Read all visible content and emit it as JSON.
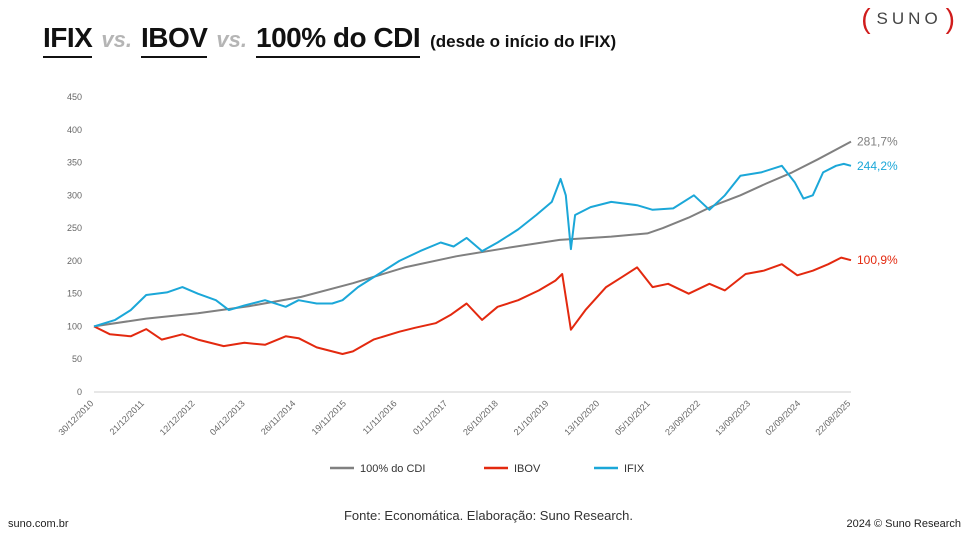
{
  "header": {
    "title_parts": {
      "ifix": "IFIX",
      "vs1": "vs.",
      "ibov": "IBOV",
      "vs2": "vs.",
      "cdi": "100% do CDI"
    },
    "subtitle": "(desde o início do IFIX)"
  },
  "brand": {
    "open": "(",
    "name": "SUNO",
    "close": ")",
    "accent": "#d01c1c"
  },
  "footer": {
    "source": "Fonte: Economática. Elaboração: Suno Research.",
    "site": "suno.com.br",
    "copyright": "2024 © Suno Research"
  },
  "chart_data": {
    "type": "line",
    "title": "IFIX vs. IBOV vs. 100% do CDI (desde o início do IFIX)",
    "xlabel": "",
    "ylabel": "",
    "ylim": [
      0,
      450
    ],
    "yticks": [
      0,
      50,
      100,
      150,
      200,
      250,
      300,
      350,
      400,
      450
    ],
    "xlim": [
      2010.99,
      2025.64
    ],
    "xticks": [
      {
        "label": "30/12/2010",
        "t": 2010.99
      },
      {
        "label": "21/12/2011",
        "t": 2011.97
      },
      {
        "label": "12/12/2012",
        "t": 2012.95
      },
      {
        "label": "04/12/2013",
        "t": 2013.92
      },
      {
        "label": "26/11/2014",
        "t": 2014.9
      },
      {
        "label": "19/11/2015",
        "t": 2015.88
      },
      {
        "label": "11/11/2016",
        "t": 2016.86
      },
      {
        "label": "01/11/2017",
        "t": 2017.84
      },
      {
        "label": "26/10/2018",
        "t": 2018.82
      },
      {
        "label": "21/10/2019",
        "t": 2019.8
      },
      {
        "label": "13/10/2020",
        "t": 2020.78
      },
      {
        "label": "05/10/2021",
        "t": 2021.76
      },
      {
        "label": "23/09/2022",
        "t": 2022.73
      },
      {
        "label": "13/09/2023",
        "t": 2023.7
      },
      {
        "label": "02/09/2024",
        "t": 2024.67
      },
      {
        "label": "22/08/2025",
        "t": 2025.64
      }
    ],
    "series": [
      {
        "name": "100% do CDI",
        "color": "#808080",
        "end_label": "281,7%",
        "points": [
          [
            2010.99,
            100
          ],
          [
            2012.0,
            112
          ],
          [
            2013.0,
            120
          ],
          [
            2014.0,
            131
          ],
          [
            2015.0,
            145
          ],
          [
            2016.0,
            166
          ],
          [
            2017.0,
            190
          ],
          [
            2018.0,
            207
          ],
          [
            2019.0,
            220
          ],
          [
            2020.0,
            232
          ],
          [
            2021.0,
            237
          ],
          [
            2021.7,
            242
          ],
          [
            2022.0,
            250
          ],
          [
            2022.5,
            266
          ],
          [
            2023.0,
            285
          ],
          [
            2023.5,
            300
          ],
          [
            2024.0,
            318
          ],
          [
            2024.5,
            335
          ],
          [
            2025.0,
            355
          ],
          [
            2025.64,
            382
          ]
        ]
      },
      {
        "name": "IBOV",
        "color": "#e3290f",
        "end_label": "100,9%",
        "points": [
          [
            2010.99,
            100
          ],
          [
            2011.3,
            88
          ],
          [
            2011.7,
            85
          ],
          [
            2012.0,
            96
          ],
          [
            2012.3,
            80
          ],
          [
            2012.7,
            88
          ],
          [
            2013.0,
            80
          ],
          [
            2013.5,
            70
          ],
          [
            2013.9,
            75
          ],
          [
            2014.3,
            72
          ],
          [
            2014.7,
            85
          ],
          [
            2014.95,
            82
          ],
          [
            2015.3,
            68
          ],
          [
            2015.8,
            58
          ],
          [
            2016.0,
            62
          ],
          [
            2016.4,
            80
          ],
          [
            2016.9,
            92
          ],
          [
            2017.2,
            98
          ],
          [
            2017.6,
            105
          ],
          [
            2017.9,
            118
          ],
          [
            2018.2,
            135
          ],
          [
            2018.5,
            110
          ],
          [
            2018.8,
            130
          ],
          [
            2019.2,
            140
          ],
          [
            2019.6,
            155
          ],
          [
            2019.92,
            170
          ],
          [
            2020.05,
            180
          ],
          [
            2020.22,
            95
          ],
          [
            2020.5,
            125
          ],
          [
            2020.9,
            160
          ],
          [
            2021.2,
            175
          ],
          [
            2021.5,
            190
          ],
          [
            2021.8,
            160
          ],
          [
            2022.1,
            165
          ],
          [
            2022.5,
            150
          ],
          [
            2022.9,
            165
          ],
          [
            2023.2,
            155
          ],
          [
            2023.6,
            180
          ],
          [
            2023.95,
            185
          ],
          [
            2024.3,
            195
          ],
          [
            2024.6,
            178
          ],
          [
            2024.9,
            185
          ],
          [
            2025.2,
            195
          ],
          [
            2025.45,
            205
          ],
          [
            2025.64,
            201
          ]
        ]
      },
      {
        "name": "IFIX",
        "color": "#1ba7d8",
        "end_label": "244,2%",
        "points": [
          [
            2010.99,
            100
          ],
          [
            2011.4,
            110
          ],
          [
            2011.7,
            125
          ],
          [
            2012.0,
            148
          ],
          [
            2012.4,
            152
          ],
          [
            2012.7,
            160
          ],
          [
            2013.0,
            150
          ],
          [
            2013.35,
            140
          ],
          [
            2013.6,
            125
          ],
          [
            2013.9,
            132
          ],
          [
            2014.3,
            140
          ],
          [
            2014.7,
            130
          ],
          [
            2014.95,
            140
          ],
          [
            2015.3,
            135
          ],
          [
            2015.6,
            135
          ],
          [
            2015.8,
            140
          ],
          [
            2016.1,
            160
          ],
          [
            2016.5,
            180
          ],
          [
            2016.9,
            200
          ],
          [
            2017.3,
            215
          ],
          [
            2017.7,
            228
          ],
          [
            2017.95,
            222
          ],
          [
            2018.2,
            235
          ],
          [
            2018.5,
            215
          ],
          [
            2018.8,
            228
          ],
          [
            2019.2,
            248
          ],
          [
            2019.55,
            270
          ],
          [
            2019.85,
            290
          ],
          [
            2020.02,
            325
          ],
          [
            2020.12,
            300
          ],
          [
            2020.22,
            218
          ],
          [
            2020.3,
            270
          ],
          [
            2020.6,
            282
          ],
          [
            2021.0,
            290
          ],
          [
            2021.5,
            285
          ],
          [
            2021.8,
            278
          ],
          [
            2022.2,
            280
          ],
          [
            2022.6,
            300
          ],
          [
            2022.9,
            278
          ],
          [
            2023.2,
            300
          ],
          [
            2023.5,
            330
          ],
          [
            2023.9,
            335
          ],
          [
            2024.3,
            345
          ],
          [
            2024.55,
            320
          ],
          [
            2024.72,
            295
          ],
          [
            2024.9,
            300
          ],
          [
            2025.1,
            335
          ],
          [
            2025.35,
            345
          ],
          [
            2025.5,
            348
          ],
          [
            2025.64,
            345
          ]
        ]
      }
    ],
    "legend": {
      "position": "bottom",
      "items": [
        "100% do CDI",
        "IBOV",
        "IFIX"
      ]
    }
  }
}
